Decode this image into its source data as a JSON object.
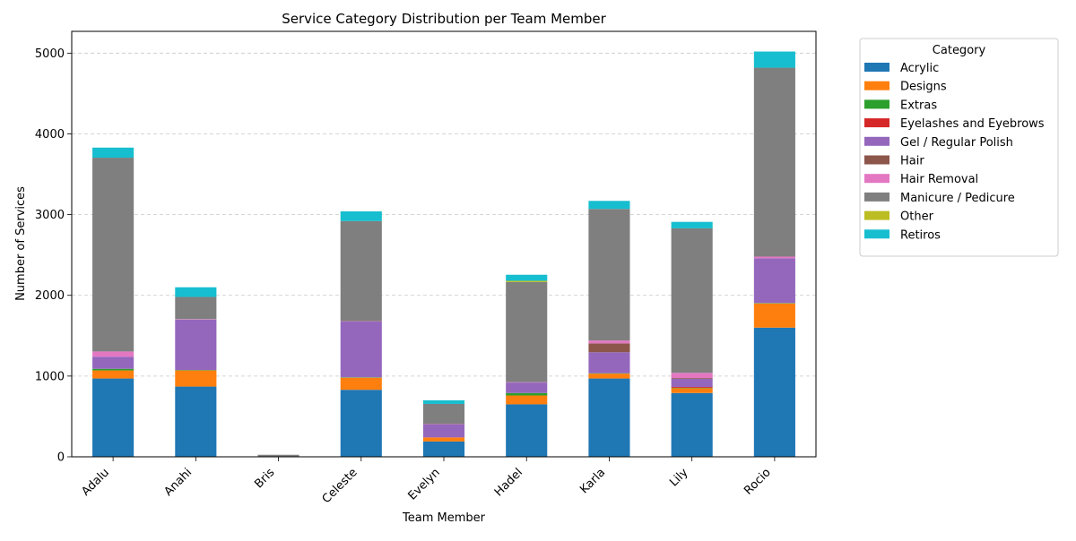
{
  "chart_data": {
    "type": "bar",
    "stacked": true,
    "title": "Service Category Distribution per Team Member",
    "xlabel": "Team Member",
    "ylabel": "Number of Services",
    "ylim": [
      0,
      5270
    ],
    "yticks": [
      0,
      1000,
      2000,
      3000,
      4000,
      5000
    ],
    "grid": "y-dashed",
    "legend_title": "Category",
    "legend_position": "outside-right-top",
    "categories": [
      "Adalu",
      "Anahi",
      "Bris",
      "Celeste",
      "Evelyn",
      "Hadel",
      "Karla",
      "Lily",
      "Rocio"
    ],
    "series": [
      {
        "name": "Acrylic",
        "color": "#1f77b4",
        "values": [
          970,
          870,
          5,
          830,
          190,
          650,
          970,
          790,
          1600
        ]
      },
      {
        "name": "Designs",
        "color": "#ff7f0e",
        "values": [
          100,
          200,
          0,
          150,
          50,
          110,
          60,
          60,
          300
        ]
      },
      {
        "name": "Extras",
        "color": "#2ca02c",
        "values": [
          20,
          5,
          0,
          5,
          0,
          30,
          5,
          5,
          5
        ]
      },
      {
        "name": "Eyelashes and Eyebrows",
        "color": "#d62728",
        "values": [
          0,
          0,
          0,
          0,
          0,
          0,
          0,
          10,
          0
        ]
      },
      {
        "name": "Gel / Regular Polish",
        "color": "#9467bd",
        "values": [
          150,
          625,
          0,
          690,
          160,
          130,
          260,
          100,
          555
        ]
      },
      {
        "name": "Hair",
        "color": "#8c564b",
        "values": [
          0,
          0,
          0,
          0,
          0,
          0,
          110,
          10,
          0
        ]
      },
      {
        "name": "Hair Removal",
        "color": "#e377c2",
        "values": [
          65,
          5,
          0,
          5,
          5,
          5,
          35,
          65,
          20
        ]
      },
      {
        "name": "Manicure / Pedicure",
        "color": "#7f7f7f",
        "values": [
          2400,
          275,
          20,
          1240,
          250,
          1240,
          1630,
          1790,
          2340
        ]
      },
      {
        "name": "Other",
        "color": "#bcbd22",
        "values": [
          0,
          0,
          0,
          0,
          0,
          15,
          0,
          0,
          0
        ]
      },
      {
        "name": "Retiros",
        "color": "#17becf",
        "values": [
          125,
          120,
          0,
          120,
          45,
          75,
          100,
          80,
          200
        ]
      }
    ]
  }
}
